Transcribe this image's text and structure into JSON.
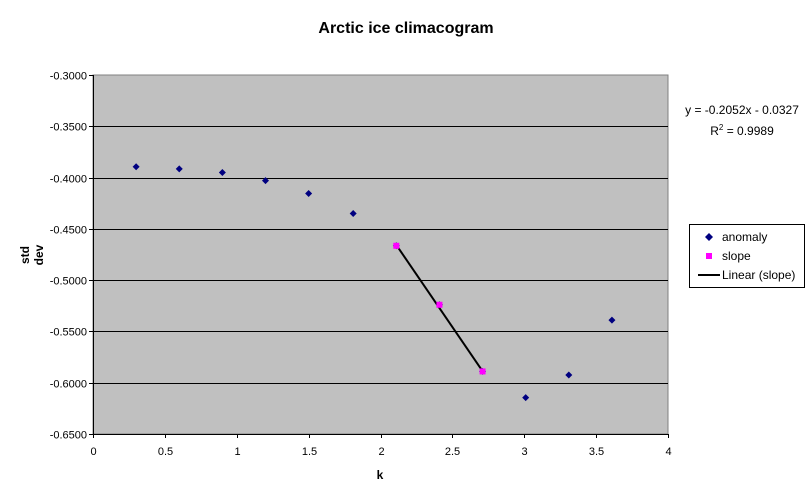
{
  "chart_data": {
    "type": "scatter",
    "title": "Arctic ice climacogram",
    "xlabel": "k",
    "ylabel": "std dev",
    "xlim": [
      0,
      4
    ],
    "ylim": [
      -0.65,
      -0.3
    ],
    "x_ticks": [
      "0",
      "0.5",
      "1",
      "1.5",
      "2",
      "2.5",
      "3",
      "3.5",
      "4"
    ],
    "y_ticks": [
      "-0.3000",
      "-0.3500",
      "-0.4000",
      "-0.4500",
      "-0.5000",
      "-0.5500",
      "-0.6000",
      "-0.6500"
    ],
    "grid": "horizontal",
    "plot_background": "#c0c0c0",
    "legend_position": "right",
    "series": [
      {
        "name": "anomaly",
        "marker": "diamond",
        "color": "#000080",
        "x": [
          0.3,
          0.6,
          0.9,
          1.2,
          1.5,
          1.81,
          2.11,
          2.41,
          2.71,
          3.01,
          3.31,
          3.61
        ],
        "y": [
          -0.3895,
          -0.3915,
          -0.395,
          -0.403,
          -0.4155,
          -0.435,
          -0.4665,
          -0.524,
          -0.589,
          -0.6145,
          -0.5925,
          -0.539
        ]
      },
      {
        "name": "slope",
        "marker": "square",
        "color": "#ff00ff",
        "x": [
          2.11,
          2.41,
          2.71
        ],
        "y": [
          -0.4665,
          -0.524,
          -0.589
        ]
      },
      {
        "name": "Linear (slope)",
        "type": "line",
        "color": "#000000",
        "x": [
          2.11,
          2.71
        ],
        "y": [
          -0.4657,
          -0.5888
        ]
      }
    ],
    "trendline": {
      "equation": "y = -0.2052x - 0.0327",
      "r2_prefix": "R",
      "r2_sup": "2",
      "r2_value": " = 0.9989"
    }
  }
}
